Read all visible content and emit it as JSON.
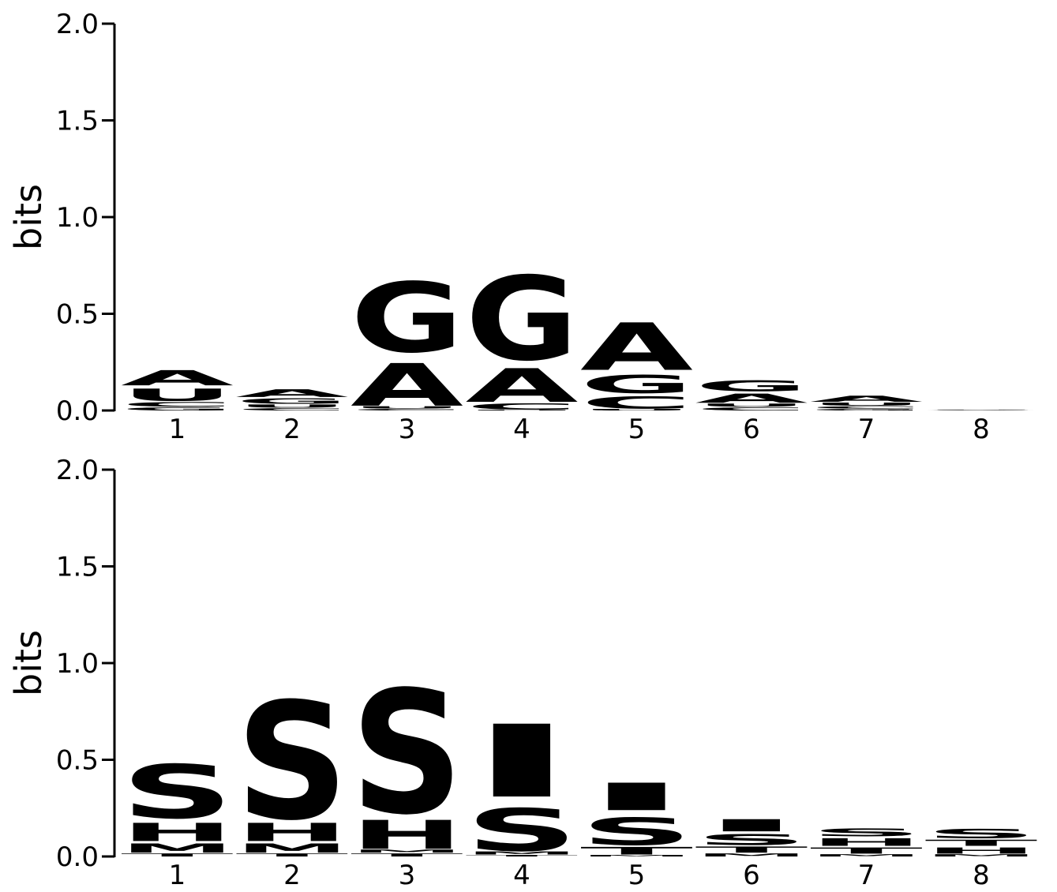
{
  "colors": {
    "A": "#00c000",
    "C": "#0000cc",
    "G": "#ffb300",
    "U": "#cc0000",
    "S": "#cc00ff",
    "I": "#ffb000",
    "H": "#ffb000",
    "M": "#cc0000",
    "T": "#00c000",
    "axis": "#000000"
  },
  "chart_data": [
    {
      "type": "sequence-logo",
      "ylabel": "bits",
      "ylim": [
        0,
        2.0
      ],
      "yticks": [
        "0.0",
        "0.5",
        "1.0",
        "1.5",
        "2.0"
      ],
      "positions": [
        "1",
        "2",
        "3",
        "4",
        "5",
        "6",
        "7",
        "8"
      ],
      "stacks": [
        [
          {
            "letter": "G",
            "bits": 0.02
          },
          {
            "letter": "C",
            "bits": 0.03
          },
          {
            "letter": "U",
            "bits": 0.08
          },
          {
            "letter": "A",
            "bits": 0.1
          }
        ],
        [
          {
            "letter": "C",
            "bits": 0.015
          },
          {
            "letter": "U",
            "bits": 0.02
          },
          {
            "letter": "G",
            "bits": 0.035
          },
          {
            "letter": "A",
            "bits": 0.05
          }
        ],
        [
          {
            "letter": "C",
            "bits": 0.01
          },
          {
            "letter": "U",
            "bits": 0.015
          },
          {
            "letter": "A",
            "bits": 0.28
          },
          {
            "letter": "G",
            "bits": 0.46
          }
        ],
        [
          {
            "letter": "U",
            "bits": 0.005
          },
          {
            "letter": "C",
            "bits": 0.04
          },
          {
            "letter": "A",
            "bits": 0.22
          },
          {
            "letter": "G",
            "bits": 0.55
          }
        ],
        [
          {
            "letter": "U",
            "bits": 0.01
          },
          {
            "letter": "C",
            "bits": 0.08
          },
          {
            "letter": "G",
            "bits": 0.12
          },
          {
            "letter": "A",
            "bits": 0.31
          }
        ],
        [
          {
            "letter": "C",
            "bits": 0.02
          },
          {
            "letter": "U",
            "bits": 0.02
          },
          {
            "letter": "A",
            "bits": 0.06
          },
          {
            "letter": "G",
            "bits": 0.07
          }
        ],
        [
          {
            "letter": "G",
            "bits": 0.01
          },
          {
            "letter": "C",
            "bits": 0.015
          },
          {
            "letter": "U",
            "bits": 0.02
          },
          {
            "letter": "A",
            "bits": 0.04
          }
        ],
        [
          {
            "letter": "C",
            "bits": 0.001
          },
          {
            "letter": "A",
            "bits": 0.001
          },
          {
            "letter": "G",
            "bits": 0.001
          },
          {
            "letter": "U",
            "bits": 0.002
          }
        ]
      ]
    },
    {
      "type": "sequence-logo",
      "ylabel": "bits",
      "ylim": [
        0,
        2.0
      ],
      "yticks": [
        "0.0",
        "0.5",
        "1.0",
        "1.5",
        "2.0"
      ],
      "positions": [
        "1",
        "2",
        "3",
        "4",
        "5",
        "6",
        "7",
        "8"
      ],
      "stacks": [
        [
          {
            "letter": "T",
            "bits": 0.02
          },
          {
            "letter": "M",
            "bits": 0.06
          },
          {
            "letter": "H",
            "bits": 0.12
          },
          {
            "letter": "S",
            "bits": 0.35
          }
        ],
        [
          {
            "letter": "T",
            "bits": 0.02
          },
          {
            "letter": "M",
            "bits": 0.06
          },
          {
            "letter": "H",
            "bits": 0.12
          },
          {
            "letter": "S",
            "bits": 0.77
          }
        ],
        [
          {
            "letter": "T",
            "bits": 0.02
          },
          {
            "letter": "M",
            "bits": 0.02
          },
          {
            "letter": "H",
            "bits": 0.19
          },
          {
            "letter": "S",
            "bits": 0.81
          }
        ],
        [
          {
            "letter": "T",
            "bits": 0.01
          },
          {
            "letter": "M",
            "bits": 0.02
          },
          {
            "letter": "S",
            "bits": 0.28
          },
          {
            "letter": "I",
            "bits": 0.48
          }
        ],
        [
          {
            "letter": "M",
            "bits": 0.01
          },
          {
            "letter": "T",
            "bits": 0.05
          },
          {
            "letter": "S",
            "bits": 0.18
          },
          {
            "letter": "I",
            "bits": 0.18
          }
        ],
        [
          {
            "letter": "M",
            "bits": 0.02
          },
          {
            "letter": "T",
            "bits": 0.04
          },
          {
            "letter": "S",
            "bits": 0.07
          },
          {
            "letter": "I",
            "bits": 0.08
          }
        ],
        [
          {
            "letter": "M",
            "bits": 0.015
          },
          {
            "letter": "T",
            "bits": 0.04
          },
          {
            "letter": "H",
            "bits": 0.05
          },
          {
            "letter": "S",
            "bits": 0.05
          }
        ],
        [
          {
            "letter": "M",
            "bits": 0.015
          },
          {
            "letter": "H",
            "bits": 0.04
          },
          {
            "letter": "T",
            "bits": 0.04
          },
          {
            "letter": "S",
            "bits": 0.06
          }
        ]
      ]
    }
  ]
}
